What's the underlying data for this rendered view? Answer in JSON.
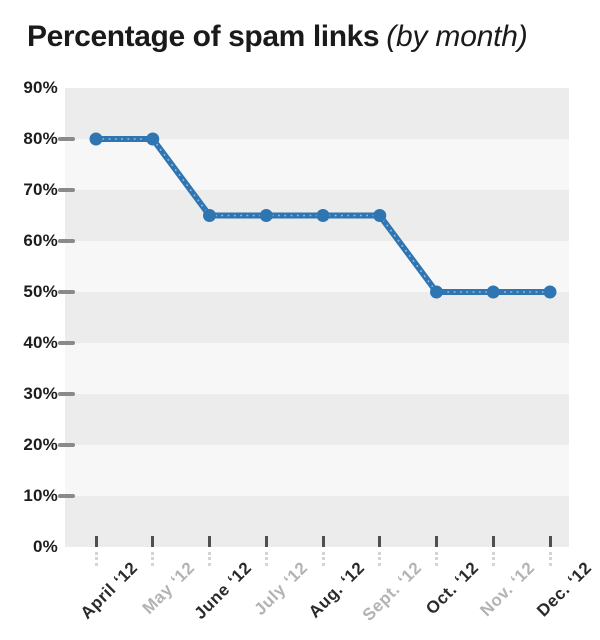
{
  "header": {
    "title": "Percentage of spam links",
    "subtitle": "(by month)"
  },
  "chart_data": {
    "type": "line",
    "title": "Percentage of spam links (by month)",
    "categories": [
      "April ‘12",
      "May ‘12",
      "June ‘12",
      "July ‘12",
      "Aug. ‘12",
      "Sept. ‘12",
      "Oct. ‘12",
      "Nov. ‘12",
      "Dec. ‘12"
    ],
    "muted_category_flags": [
      false,
      true,
      false,
      true,
      false,
      true,
      false,
      true,
      false
    ],
    "series": [
      {
        "name": "Percentage of spam links",
        "values": [
          80,
          80,
          65,
          65,
          65,
          65,
          50,
          50,
          50
        ]
      }
    ],
    "unit": "%",
    "xlabel": "",
    "ylabel": "",
    "ylim": [
      0,
      90
    ],
    "ytick_step": 10,
    "ytick_labels": [
      "90%",
      "80%",
      "70%",
      "60%",
      "50%",
      "40%",
      "30%",
      "20%",
      "10%",
      "0%"
    ],
    "yticks_with_dash": [
      80,
      70,
      60,
      50,
      40,
      30,
      20,
      10
    ],
    "legend": "none",
    "grid": "alternating horizontal gray bands every 10%"
  },
  "colors": {
    "line": "#2e75b2",
    "marker": "#2e75b2",
    "band_dark": "#ececec",
    "band_light": "#f8f7f7",
    "title": "#1a1a1a",
    "y_label": "#1d1d1d",
    "x_label_dark": "#2a2a2a",
    "x_label_muted": "#b3b3b3",
    "y_dash": "#8a8a8a",
    "x_tick_dark": "#4f4f4f",
    "x_tick_light": "#d4d4d4",
    "background": "#ffffff"
  }
}
